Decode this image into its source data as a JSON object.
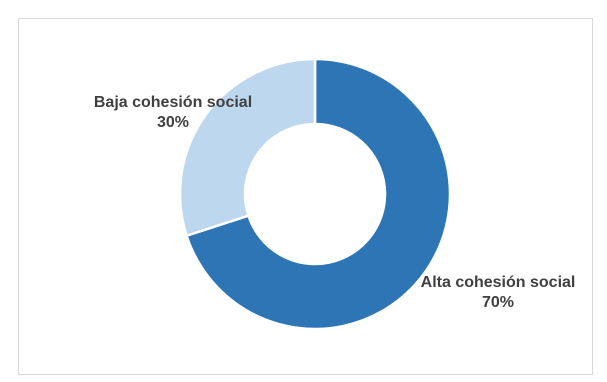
{
  "chart_data": {
    "type": "pie",
    "variant": "donut",
    "slices": [
      {
        "label": "Alta cohesión social",
        "value": 70,
        "value_label": "70%",
        "color": "#2e75b6"
      },
      {
        "label": "Baja cohesión social",
        "value": 30,
        "value_label": "30%",
        "color": "#bdd7ee"
      }
    ],
    "start": "top",
    "direction": "clockwise",
    "legend": "none",
    "grid": false
  }
}
